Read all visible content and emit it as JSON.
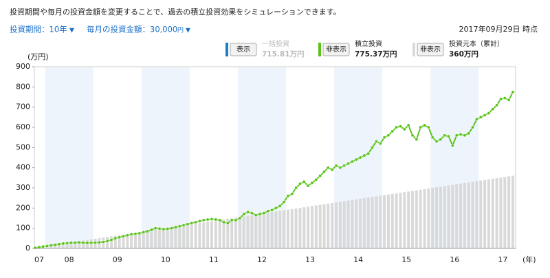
{
  "chart_data": {
    "type": "line",
    "title": "投資期間や毎月の投資金額を変更することで、過去の積立投資効果をシミュレーションできます。",
    "period_label": "投資期間：10年",
    "period_arrow": "▼",
    "amount_label": "毎月の投資金額：30,000",
    "amount_unit": "円",
    "amount_arrow": "▼",
    "as_of": "2017年09月29日 時点",
    "y_unit": "(万円)",
    "x_unit": "(年)",
    "x_labels": [
      "07",
      "08",
      "09",
      "10",
      "11",
      "12",
      "13",
      "14",
      "15",
      "16",
      "17"
    ],
    "ylim": [
      0,
      900
    ],
    "yticks": [
      0,
      100,
      200,
      300,
      400,
      500,
      600,
      700,
      800,
      900
    ],
    "series": [
      {
        "name": "一括投資",
        "color": "#1a7fc8",
        "button": "表示",
        "total_label": "715.81万円",
        "visible": false
      },
      {
        "name": "積立投資",
        "color": "#5ac318",
        "button": "非表示",
        "total_label": "775.37万円",
        "visible": true,
        "kind": "line",
        "values": [
          3,
          6,
          9,
          12,
          15,
          18,
          21,
          24,
          26,
          28,
          28,
          30,
          28,
          27,
          28,
          28,
          30,
          32,
          36,
          42,
          50,
          55,
          60,
          65,
          70,
          72,
          75,
          80,
          85,
          92,
          100,
          98,
          95,
          97,
          100,
          105,
          110,
          115,
          120,
          125,
          130,
          135,
          140,
          143,
          145,
          143,
          140,
          130,
          125,
          140,
          140,
          150,
          170,
          180,
          175,
          165,
          170,
          175,
          185,
          190,
          200,
          210,
          230,
          260,
          270,
          300,
          320,
          330,
          310,
          325,
          340,
          360,
          380,
          400,
          390,
          410,
          400,
          410,
          420,
          430,
          440,
          450,
          460,
          470,
          500,
          530,
          520,
          550,
          560,
          580,
          600,
          605,
          590,
          610,
          560,
          540,
          600,
          610,
          600,
          550,
          530,
          540,
          560,
          555,
          510,
          560,
          565,
          560,
          570,
          600,
          640,
          650,
          660,
          670,
          690,
          710,
          740,
          745,
          735,
          775
        ]
      },
      {
        "name": "投資元本（累計）",
        "color": "#d9d9d9",
        "button": "非表示",
        "total_label": "360万円",
        "visible": true,
        "kind": "bar",
        "values": [
          3,
          6,
          9,
          12,
          15,
          18,
          21,
          24,
          27,
          30,
          33,
          36,
          39,
          42,
          45,
          48,
          51,
          54,
          57,
          60,
          63,
          66,
          69,
          72,
          75,
          78,
          81,
          84,
          87,
          90,
          93,
          96,
          99,
          102,
          105,
          108,
          111,
          114,
          117,
          120,
          123,
          126,
          129,
          132,
          135,
          138,
          141,
          144,
          147,
          150,
          153,
          156,
          159,
          162,
          165,
          168,
          171,
          174,
          177,
          180,
          183,
          186,
          189,
          192,
          195,
          198,
          201,
          204,
          207,
          210,
          213,
          216,
          219,
          222,
          225,
          228,
          231,
          234,
          237,
          240,
          243,
          246,
          249,
          252,
          255,
          258,
          261,
          264,
          267,
          270,
          273,
          276,
          279,
          282,
          285,
          288,
          291,
          294,
          297,
          300,
          303,
          306,
          309,
          312,
          315,
          318,
          321,
          324,
          327,
          330,
          333,
          336,
          339,
          342,
          345,
          348,
          351,
          354,
          357,
          360
        ]
      }
    ]
  }
}
